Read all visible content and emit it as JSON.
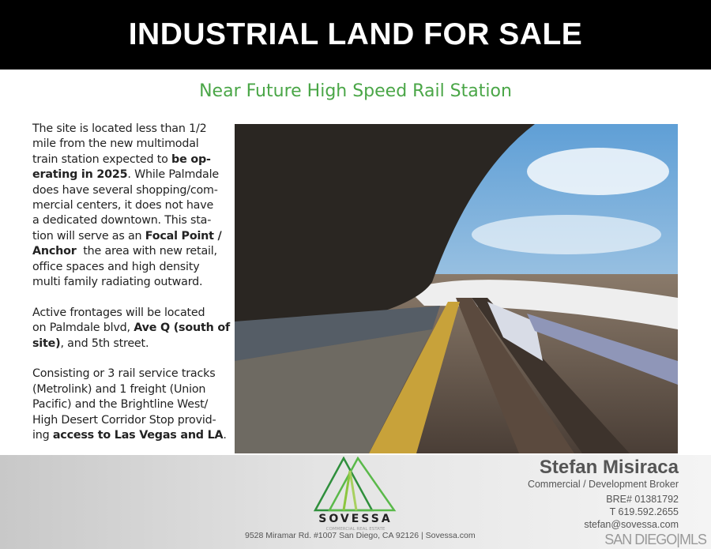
{
  "header": {
    "title": "INDUSTRIAL LAND FOR SALE"
  },
  "subtitle": "Near Future High Speed Rail Station",
  "description": [
    [
      [
        {
          "t": "The site is located less than 1/2"
        }
      ],
      [
        {
          "t": "mile from the new multimodal"
        }
      ],
      [
        {
          "t": "train station expected to "
        },
        {
          "t": "be op-",
          "b": true
        }
      ],
      [
        {
          "t": "erating in 2025",
          "b": true
        },
        {
          "t": ". While Palmdale"
        }
      ],
      [
        {
          "t": "does have several shopping/com-"
        }
      ],
      [
        {
          "t": "mercial centers, it does not have"
        }
      ],
      [
        {
          "t": "a dedicated downtown. This sta-"
        }
      ],
      [
        {
          "t": "tion will serve as an "
        },
        {
          "t": "Focal Point /",
          "b": true
        }
      ],
      [
        {
          "t": "Anchor",
          "b": true
        },
        {
          "t": "  the area with new retail,"
        }
      ],
      [
        {
          "t": "office spaces and high density"
        }
      ],
      [
        {
          "t": "multi family radiating outward."
        }
      ]
    ],
    [
      [
        {
          "t": "Active frontages will be located"
        }
      ],
      [
        {
          "t": "on Palmdale blvd, "
        },
        {
          "t": "Ave Q (south of",
          "b": true
        }
      ],
      [
        {
          "t": "site)",
          "b": true
        },
        {
          "t": ", and 5th street."
        }
      ]
    ],
    [
      [
        {
          "t": "Consisting or 3 rail service tracks"
        }
      ],
      [
        {
          "t": "(Metrolink) and 1 freight (Union"
        }
      ],
      [
        {
          "t": "Pacific) and the Brightline West/"
        }
      ],
      [
        {
          "t": "High Desert Corridor Stop provid-"
        }
      ],
      [
        {
          "t": "ing "
        },
        {
          "t": "access to Las Vegas and LA",
          "b": true
        },
        {
          "t": "."
        }
      ]
    ]
  ],
  "footer": {
    "logo": {
      "name": "SOVESSA",
      "tagline": "COMMERCIAL REAL ESTATE"
    },
    "address": "9528 Miramar Rd. #1007 San Diego, CA 92126  |  Sovessa.com",
    "contact": {
      "name": "Stefan Misiraca",
      "role": "Commercial / Development Broker",
      "license": "BRE# 01381792",
      "phone": "T 619.592.2655",
      "email": "stefan@sovessa.com"
    },
    "watermark": "SAN DIEGO|MLS"
  },
  "colors": {
    "accent": "#4aa647",
    "banner": "#000000"
  }
}
